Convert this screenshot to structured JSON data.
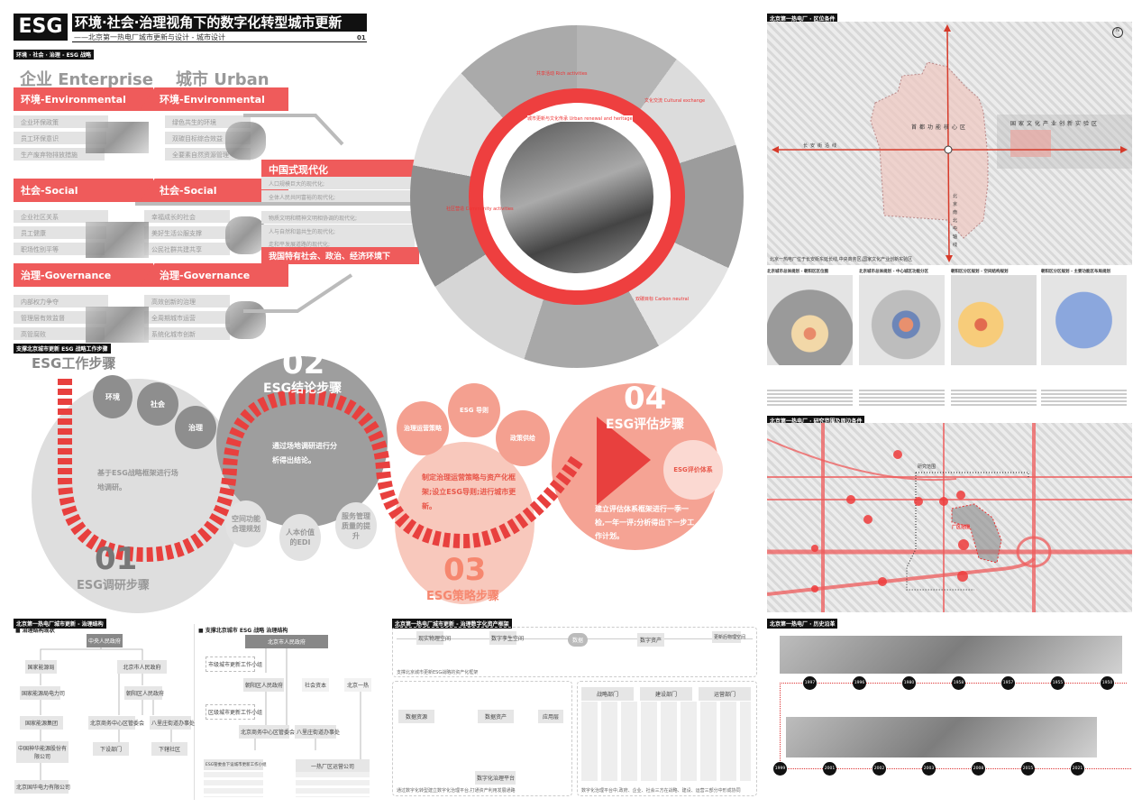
{
  "header": {
    "logo": "ESG",
    "title": "环境·社会·治理视角下的数字化转型城市更新",
    "subtitle": "——北京第一热电厂城市更新与设计 - 城市设计",
    "page": "01"
  },
  "strategy": {
    "tag": "环境 · 社会 · 治理 - ESG 战略",
    "enterprise": "企业 Enterprise",
    "urban": "城市 Urban",
    "groups": [
      {
        "left_title": "环境-Environmental",
        "right_title": "环境-Environmental",
        "left": [
          "企业环保政策",
          "员工环保意识",
          "生产废弃物排放措施"
        ],
        "right": [
          "绿色共生的环境",
          "双碳目标综合效益",
          "全要素自然资源管理"
        ]
      },
      {
        "left_title": "社会-Social",
        "right_title": "社会-Social",
        "left": [
          "企业社区关系",
          "员工健康",
          "职场性别平等"
        ],
        "right": [
          "幸福成长的社会",
          "美好生活公服支撑",
          "公民社群共建共享"
        ]
      },
      {
        "left_title": "治理-Governance",
        "right_title": "治理-Governance",
        "left": [
          "内部权力争夺",
          "管理层有效监督",
          "高管腐败"
        ],
        "right": [
          "高效创新的治理",
          "全周期城市运营",
          "系统化城市创新"
        ]
      }
    ],
    "modernization": {
      "title": "中国式现代化",
      "items": [
        "人口规模巨大的现代化;",
        "全体人民共同富裕的现代化;",
        "物质文明和精神文明相协调的现代化;",
        "人与自然和谐共生的现代化;",
        "走和平发展道路的现代化;"
      ],
      "footer": "我国特有社会、政治、经济环境下"
    }
  },
  "collage": {
    "ring_labels": [
      "共享活动 Rich activities",
      "城市更新与文化传承 Urban renewal and heritage",
      "文化交流 Cultural exchange",
      "社区营造 Community activities",
      "双碳目标 Carbon neutral"
    ]
  },
  "steps": {
    "tag": "支撑北京城市更新 ESG 战略工作步骤",
    "heading": "ESG工作步骤",
    "s1": {
      "num": "01",
      "name": "ESG调研步骤",
      "desc": "基于ESG战略框架进行场地调研。",
      "subs": [
        "环境",
        "社会",
        "治理"
      ]
    },
    "s2": {
      "num": "02",
      "name": "ESG结论步骤",
      "desc": "通过场地调研进行分析得出结论。",
      "subs": [
        "空间功能合理规划",
        "人本价值的EDI",
        "服务管理质量的提升"
      ]
    },
    "s3": {
      "num": "03",
      "name": "ESG策略步骤",
      "desc": "制定治理运营策略与资产化框架;设立ESG导则;进行城市更新。",
      "subs": [
        "治理运营策略",
        "ESG 导则",
        "政策供给"
      ]
    },
    "s4": {
      "num": "04",
      "name": "ESG评估步骤",
      "desc": "建立评估体系框架进行一季一检,一年一评;分析得出下一步工作计划。",
      "sub": "ESG评价体系"
    }
  },
  "governance": {
    "tag": "北京第一热电厂城市更新 - 治理结构",
    "current_title": "■ 治理结构现状",
    "future_title": "■ 支撑北京城市 ESG 战略 治理结构",
    "current": [
      "中央人民政府",
      "国家能源局",
      "北京市人民政府",
      "国家能源局电力司",
      "朝阳区人民政府",
      "国家能源集团",
      "北京商务中心区管委会",
      "八里庄街道办事处",
      "中国神华能源股份有限公司",
      "下设部门",
      "下辖社区",
      "北京国华电力有限公司"
    ],
    "future": [
      "北京市人民政府",
      "市级城市更新工作小组",
      "朝阳区人民政府",
      "社会资本",
      "北京一热",
      "区级城市更新工作小组",
      "北京商务中心区管委会",
      "八里庄街道办事处",
      "ESG管委会下设城市更新工作小组",
      "一热厂区运营公司"
    ]
  },
  "digital": {
    "tag": "北京第一热电厂城市更新 - 治理数字化资产框架",
    "flow": [
      "现实物理空间",
      "数字孪生空间",
      "数据",
      "数字资产",
      "更新后物理空间"
    ],
    "note1": "支撑北京城市更新ESG战略的资产化框架",
    "mid": [
      "数据资源",
      "数据资产",
      "应用层"
    ],
    "center": "数字化治理平台",
    "note2": "通过数字化转型建立数字化治理平台,打通资产利用发展通路",
    "depts": [
      "战略部门",
      "建设部门",
      "运营部门"
    ],
    "note3": "数字化治理平台中,政府、企业、社会三方在战略、建设、运营三部分中形成协同"
  },
  "location": {
    "tag": "北京第一热电厂 · 区位条件",
    "core": "首都功能核心区",
    "axis_h": "长安街沿线",
    "axis_v": "北京南北中轴线",
    "zone": "国家文化产业创新实验区",
    "caption": "北京一热电厂位于长安街东延长线,中央商务区,国家文化产业创新实验区",
    "north": "N",
    "maps": [
      "北京城市总体规划 - 朝阳区区位图",
      "北京城市总体规划 - 中心城区功能分区",
      "朝阳区分区规划 - 空间结构规划",
      "朝阳区分区规划 - 主要功能区布局规划"
    ]
  },
  "site": {
    "tag": "北京第一热电厂 · 研究范围及周边条件",
    "range": "研究范围",
    "plant": "厂区范围"
  },
  "history": {
    "tag": "北京第一热电厂 · 历史沿革",
    "top_years": [
      "1997",
      "1996",
      "1980",
      "1958",
      "1957",
      "1955",
      "1950"
    ],
    "bottom_years": [
      "1999",
      "2001",
      "2002",
      "2003",
      "2008",
      "2015",
      "2021"
    ]
  },
  "colors": {
    "red": "#ef5b5b",
    "accent": "#e8403e",
    "salmon": "#f5a394",
    "gray": "#999999"
  }
}
